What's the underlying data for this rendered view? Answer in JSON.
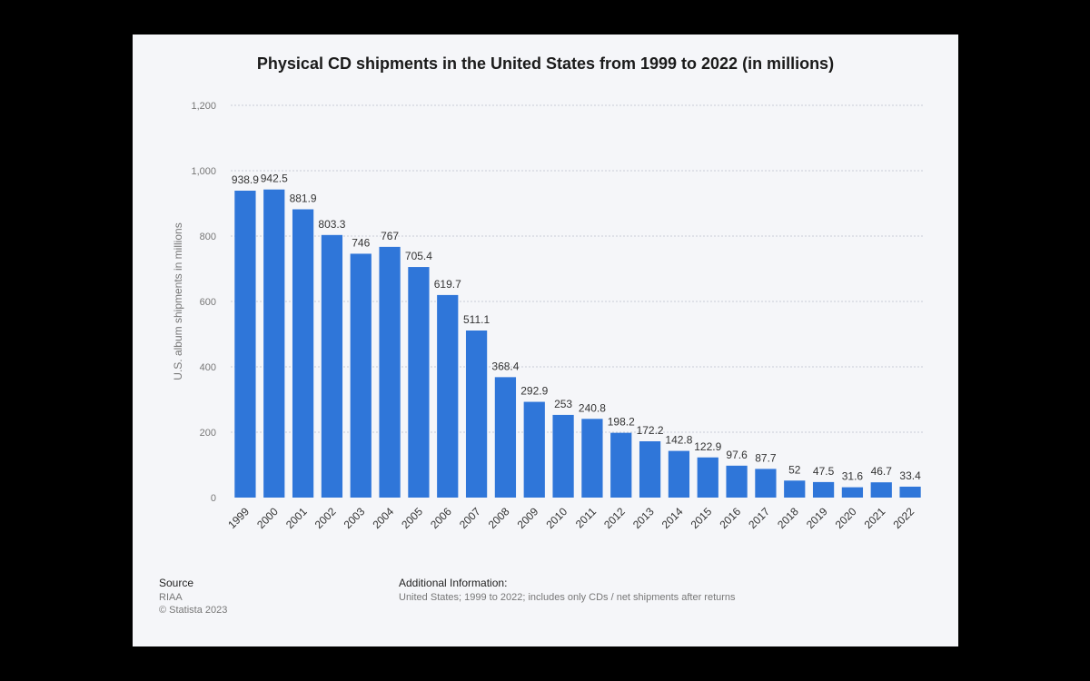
{
  "chart_data": {
    "type": "bar",
    "title": "Physical CD shipments in the United States from 1999 to 2022 (in millions)",
    "xlabel": "",
    "ylabel": "U.S. album shipments in millions",
    "ylim": [
      0,
      1200
    ],
    "yticks": [
      0,
      200,
      400,
      600,
      800,
      1000,
      1200
    ],
    "ytick_labels": [
      "0",
      "200",
      "400",
      "600",
      "800",
      "1,000",
      "1,200"
    ],
    "grid": true,
    "categories": [
      "1999",
      "2000",
      "2001",
      "2002",
      "2003",
      "2004",
      "2005",
      "2006",
      "2007",
      "2008",
      "2009",
      "2010",
      "2011",
      "2012",
      "2013",
      "2014",
      "2015",
      "2016",
      "2017",
      "2018",
      "2019",
      "2020",
      "2021",
      "2022"
    ],
    "values": [
      938.9,
      942.5,
      881.9,
      803.3,
      746,
      767,
      705.4,
      619.7,
      511.1,
      368.4,
      292.9,
      253,
      240.8,
      198.2,
      172.2,
      142.8,
      122.9,
      97.6,
      87.7,
      52,
      47.5,
      31.6,
      46.7,
      33.4
    ],
    "value_labels": [
      "938.9",
      "942.5",
      "881.9",
      "803.3",
      "746",
      "767",
      "705.4",
      "619.7",
      "511.1",
      "368.4",
      "292.9",
      "253",
      "240.8",
      "198.2",
      "172.2",
      "142.8",
      "122.9",
      "97.6",
      "87.7",
      "52",
      "47.5",
      "31.6",
      "46.7",
      "33.4"
    ]
  },
  "colors": {
    "bar": "#2f76d9",
    "grid": "#c9ccd6",
    "tick_text": "#777777",
    "value_text": "#333333",
    "card_background": "#f5f6f9"
  },
  "footer": {
    "source_heading": "Source",
    "source_name": "RIAA",
    "copyright": "© Statista 2023",
    "info_heading": "Additional Information:",
    "info_text": "United States; 1999 to 2022; includes only CDs / net shipments after returns"
  }
}
